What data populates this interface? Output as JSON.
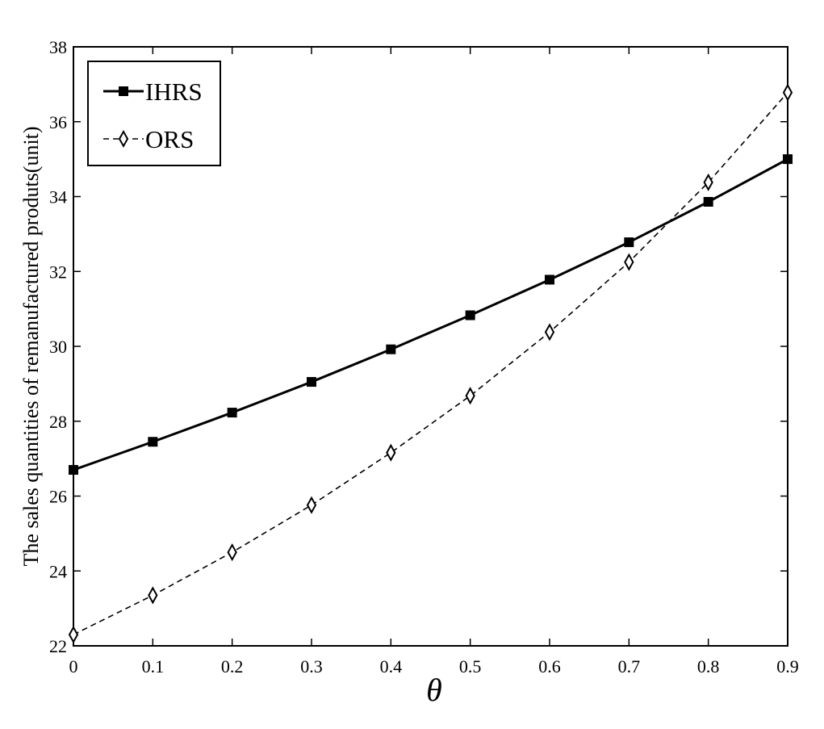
{
  "chart_data": {
    "type": "line",
    "title": "",
    "xlabel": "θ",
    "ylabel": "The sales quantities of remanufactured produts(unit)",
    "x": [
      0,
      0.1,
      0.2,
      0.3,
      0.4,
      0.5,
      0.6,
      0.7,
      0.8,
      0.9
    ],
    "x_tick_labels": [
      "0",
      "0.1",
      "0.2",
      "0.3",
      "0.4",
      "0.5",
      "0.6",
      "0.7",
      "0.8",
      "0.9"
    ],
    "y_tick_labels": [
      "22",
      "24",
      "26",
      "28",
      "30",
      "32",
      "34",
      "36",
      "38"
    ],
    "xlim": [
      0,
      0.9
    ],
    "ylim": [
      22,
      38
    ],
    "grid": false,
    "legend_position": "top-left",
    "series": [
      {
        "name": "IHRS",
        "marker": "square",
        "line_style": "solid",
        "color": "#000000",
        "values": [
          26.7,
          27.45,
          28.23,
          29.05,
          29.92,
          30.83,
          31.78,
          32.78,
          33.86,
          35.0
        ]
      },
      {
        "name": "ORS",
        "marker": "diamond-open",
        "line_style": "dashed",
        "color": "#000000",
        "values": [
          22.3,
          23.35,
          24.5,
          25.76,
          27.16,
          28.68,
          30.38,
          32.25,
          34.38,
          36.78
        ]
      }
    ]
  }
}
